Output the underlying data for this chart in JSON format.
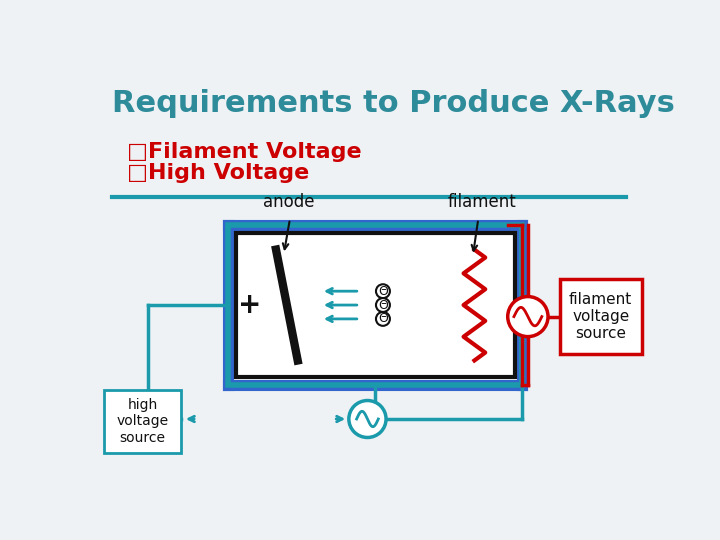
{
  "title": "Requirements to Produce X-Rays",
  "title_color": "#2e8b9a",
  "title_fontsize": 22,
  "bullet1": "□Filament Voltage",
  "bullet2": "□High Voltage",
  "bullet_color": "#cc0000",
  "bullet_fontsize": 16,
  "bg_color": "#eef2f5",
  "label_anode": "anode",
  "label_filament": "filament",
  "label_high_voltage": "high\nvoltage\nsource",
  "label_filament_source": "filament\nvoltage\nsource",
  "teal_color": "#1a9aaa",
  "red_color": "#cc0000",
  "black_color": "#111111",
  "blue_color": "#3366cc"
}
